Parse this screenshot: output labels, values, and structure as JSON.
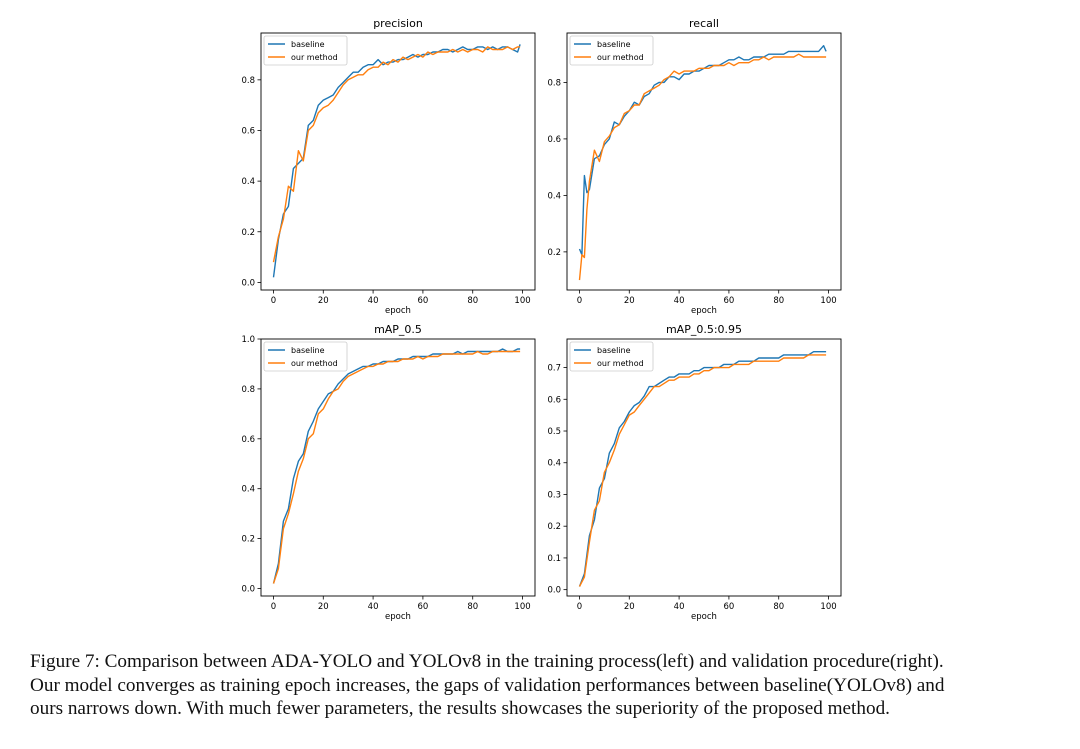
{
  "figure": {
    "caption_lines": [
      "Figure 7: Comparison between ADA-YOLO and YOLOv8 in the training process(left) and validation procedure(right).",
      "Our model converges as training epoch increases, the gaps of validation performances between baseline(YOLOv8) and",
      "ours narrows down. With much fewer parameters, the results showcases the superiority of the proposed method."
    ]
  },
  "colors": {
    "baseline": "#1f77b4",
    "ours": "#ff7f0e",
    "axis": "#000000"
  },
  "chart_data": [
    {
      "type": "line",
      "title": "precision",
      "xlabel": "epoch",
      "ylabel": "",
      "xlim": [
        -5,
        105
      ],
      "ylim": [
        -0.03,
        0.985
      ],
      "xticks": [
        0,
        20,
        40,
        60,
        80,
        100
      ],
      "yticks": [
        0.0,
        0.2,
        0.4,
        0.6,
        0.8
      ],
      "ytick_labels": [
        "0.0",
        "0.2",
        "0.4",
        "0.6",
        "0.8"
      ],
      "legend": "top-left",
      "series": [
        {
          "name": "baseline",
          "x": [
            0,
            2,
            4,
            6,
            8,
            10,
            12,
            14,
            16,
            18,
            20,
            22,
            24,
            26,
            28,
            30,
            32,
            34,
            36,
            38,
            40,
            42,
            44,
            46,
            48,
            50,
            52,
            54,
            56,
            58,
            60,
            62,
            64,
            66,
            68,
            70,
            72,
            74,
            76,
            78,
            80,
            82,
            84,
            86,
            88,
            90,
            92,
            94,
            96,
            98,
            99
          ],
          "values": [
            0.02,
            0.17,
            0.27,
            0.3,
            0.45,
            0.47,
            0.49,
            0.62,
            0.64,
            0.7,
            0.72,
            0.73,
            0.74,
            0.77,
            0.79,
            0.81,
            0.83,
            0.83,
            0.85,
            0.86,
            0.86,
            0.88,
            0.86,
            0.87,
            0.87,
            0.88,
            0.88,
            0.89,
            0.9,
            0.89,
            0.9,
            0.9,
            0.91,
            0.91,
            0.92,
            0.92,
            0.91,
            0.92,
            0.93,
            0.92,
            0.92,
            0.93,
            0.93,
            0.92,
            0.93,
            0.92,
            0.93,
            0.93,
            0.92,
            0.91,
            0.94
          ]
        },
        {
          "name": "our method",
          "x": [
            0,
            2,
            4,
            6,
            8,
            10,
            12,
            14,
            16,
            18,
            20,
            22,
            24,
            26,
            28,
            30,
            32,
            34,
            36,
            38,
            40,
            42,
            44,
            46,
            48,
            50,
            52,
            54,
            56,
            58,
            60,
            62,
            64,
            66,
            68,
            70,
            72,
            74,
            76,
            78,
            80,
            82,
            84,
            86,
            88,
            90,
            92,
            94,
            96,
            98,
            99
          ],
          "values": [
            0.08,
            0.18,
            0.25,
            0.38,
            0.36,
            0.52,
            0.48,
            0.6,
            0.62,
            0.67,
            0.69,
            0.7,
            0.72,
            0.75,
            0.78,
            0.8,
            0.81,
            0.82,
            0.82,
            0.84,
            0.85,
            0.85,
            0.87,
            0.86,
            0.88,
            0.87,
            0.89,
            0.88,
            0.89,
            0.9,
            0.89,
            0.91,
            0.9,
            0.91,
            0.91,
            0.91,
            0.92,
            0.91,
            0.92,
            0.91,
            0.92,
            0.92,
            0.91,
            0.93,
            0.92,
            0.92,
            0.92,
            0.93,
            0.92,
            0.93,
            0.93
          ]
        }
      ]
    },
    {
      "type": "line",
      "title": "recall",
      "xlabel": "epoch",
      "ylabel": "",
      "xlim": [
        -5,
        105
      ],
      "ylim": [
        0.065,
        0.975
      ],
      "xticks": [
        0,
        20,
        40,
        60,
        80,
        100
      ],
      "yticks": [
        0.2,
        0.4,
        0.6,
        0.8
      ],
      "ytick_labels": [
        "0.2",
        "0.4",
        "0.6",
        "0.8"
      ],
      "legend": "top-left",
      "series": [
        {
          "name": "baseline",
          "x": [
            0,
            1,
            2,
            3,
            4,
            6,
            8,
            10,
            12,
            14,
            16,
            18,
            20,
            22,
            24,
            26,
            28,
            30,
            32,
            34,
            36,
            38,
            40,
            42,
            44,
            46,
            48,
            50,
            52,
            54,
            56,
            58,
            60,
            62,
            64,
            66,
            68,
            70,
            72,
            74,
            76,
            78,
            80,
            82,
            84,
            86,
            88,
            90,
            92,
            94,
            96,
            98,
            99
          ],
          "values": [
            0.21,
            0.19,
            0.47,
            0.41,
            0.42,
            0.53,
            0.54,
            0.58,
            0.6,
            0.66,
            0.65,
            0.68,
            0.7,
            0.73,
            0.72,
            0.75,
            0.76,
            0.79,
            0.8,
            0.8,
            0.82,
            0.82,
            0.81,
            0.83,
            0.83,
            0.84,
            0.84,
            0.85,
            0.86,
            0.86,
            0.86,
            0.87,
            0.88,
            0.88,
            0.89,
            0.88,
            0.88,
            0.89,
            0.89,
            0.89,
            0.9,
            0.9,
            0.9,
            0.9,
            0.91,
            0.91,
            0.91,
            0.91,
            0.91,
            0.91,
            0.91,
            0.93,
            0.91
          ]
        },
        {
          "name": "our method",
          "x": [
            0,
            1,
            2,
            3,
            4,
            6,
            8,
            10,
            12,
            14,
            16,
            18,
            20,
            22,
            24,
            26,
            28,
            30,
            32,
            34,
            36,
            38,
            40,
            42,
            44,
            46,
            48,
            50,
            52,
            54,
            56,
            58,
            60,
            62,
            64,
            66,
            68,
            70,
            72,
            74,
            76,
            78,
            80,
            82,
            84,
            86,
            88,
            90,
            92,
            94,
            96,
            98,
            99
          ],
          "values": [
            0.1,
            0.19,
            0.18,
            0.35,
            0.45,
            0.56,
            0.52,
            0.59,
            0.61,
            0.64,
            0.65,
            0.69,
            0.7,
            0.72,
            0.72,
            0.76,
            0.77,
            0.78,
            0.79,
            0.81,
            0.82,
            0.84,
            0.83,
            0.84,
            0.84,
            0.84,
            0.85,
            0.85,
            0.85,
            0.86,
            0.86,
            0.86,
            0.87,
            0.86,
            0.87,
            0.87,
            0.87,
            0.88,
            0.88,
            0.89,
            0.88,
            0.89,
            0.89,
            0.89,
            0.89,
            0.89,
            0.9,
            0.89,
            0.89,
            0.89,
            0.89,
            0.89,
            0.89
          ]
        }
      ]
    },
    {
      "type": "line",
      "title": "mAP_0.5",
      "xlabel": "epoch",
      "ylabel": "",
      "xlim": [
        -5,
        105
      ],
      "ylim": [
        -0.03,
        1.0
      ],
      "xticks": [
        0,
        20,
        40,
        60,
        80,
        100
      ],
      "yticks": [
        0.0,
        0.2,
        0.4,
        0.6,
        0.8,
        1.0
      ],
      "ytick_labels": [
        "0.0",
        "0.2",
        "0.4",
        "0.6",
        "0.8",
        "1.0"
      ],
      "legend": "top-left",
      "series": [
        {
          "name": "baseline",
          "x": [
            0,
            2,
            4,
            6,
            8,
            10,
            12,
            14,
            16,
            18,
            20,
            22,
            24,
            26,
            28,
            30,
            32,
            34,
            36,
            38,
            40,
            42,
            44,
            46,
            48,
            50,
            52,
            54,
            56,
            58,
            60,
            62,
            64,
            66,
            68,
            70,
            72,
            74,
            76,
            78,
            80,
            82,
            84,
            86,
            88,
            90,
            92,
            94,
            96,
            98,
            99
          ],
          "values": [
            0.02,
            0.1,
            0.27,
            0.32,
            0.44,
            0.51,
            0.54,
            0.63,
            0.67,
            0.72,
            0.75,
            0.78,
            0.79,
            0.82,
            0.84,
            0.86,
            0.87,
            0.88,
            0.89,
            0.89,
            0.9,
            0.9,
            0.91,
            0.91,
            0.91,
            0.92,
            0.92,
            0.92,
            0.93,
            0.93,
            0.93,
            0.93,
            0.94,
            0.94,
            0.94,
            0.94,
            0.94,
            0.95,
            0.94,
            0.95,
            0.95,
            0.95,
            0.95,
            0.95,
            0.95,
            0.95,
            0.96,
            0.95,
            0.95,
            0.96,
            0.96
          ]
        },
        {
          "name": "our method",
          "x": [
            0,
            2,
            4,
            6,
            8,
            10,
            12,
            14,
            16,
            18,
            20,
            22,
            24,
            26,
            28,
            30,
            32,
            34,
            36,
            38,
            40,
            42,
            44,
            46,
            48,
            50,
            52,
            54,
            56,
            58,
            60,
            62,
            64,
            66,
            68,
            70,
            72,
            74,
            76,
            78,
            80,
            82,
            84,
            86,
            88,
            90,
            92,
            94,
            96,
            98,
            99
          ],
          "values": [
            0.02,
            0.08,
            0.24,
            0.3,
            0.38,
            0.47,
            0.52,
            0.6,
            0.62,
            0.7,
            0.72,
            0.76,
            0.79,
            0.8,
            0.83,
            0.85,
            0.86,
            0.87,
            0.88,
            0.89,
            0.89,
            0.9,
            0.9,
            0.91,
            0.91,
            0.91,
            0.92,
            0.92,
            0.92,
            0.93,
            0.92,
            0.93,
            0.93,
            0.93,
            0.94,
            0.94,
            0.94,
            0.94,
            0.94,
            0.94,
            0.94,
            0.95,
            0.94,
            0.94,
            0.95,
            0.95,
            0.95,
            0.95,
            0.95,
            0.95,
            0.95
          ]
        }
      ]
    },
    {
      "type": "line",
      "title": "mAP_0.5:0.95",
      "xlabel": "epoch",
      "ylabel": "",
      "xlim": [
        -5,
        105
      ],
      "ylim": [
        -0.02,
        0.79
      ],
      "xticks": [
        0,
        20,
        40,
        60,
        80,
        100
      ],
      "yticks": [
        0.0,
        0.1,
        0.2,
        0.3,
        0.4,
        0.5,
        0.6,
        0.7
      ],
      "ytick_labels": [
        "0.0",
        "0.1",
        "0.2",
        "0.3",
        "0.4",
        "0.5",
        "0.6",
        "0.7"
      ],
      "legend": "top-left",
      "series": [
        {
          "name": "baseline",
          "x": [
            0,
            2,
            4,
            6,
            8,
            10,
            12,
            14,
            16,
            18,
            20,
            22,
            24,
            26,
            28,
            30,
            32,
            34,
            36,
            38,
            40,
            42,
            44,
            46,
            48,
            50,
            52,
            54,
            56,
            58,
            60,
            62,
            64,
            66,
            68,
            70,
            72,
            74,
            76,
            78,
            80,
            82,
            84,
            86,
            88,
            90,
            92,
            94,
            96,
            98,
            99
          ],
          "values": [
            0.01,
            0.05,
            0.17,
            0.22,
            0.32,
            0.35,
            0.43,
            0.46,
            0.51,
            0.53,
            0.56,
            0.58,
            0.59,
            0.61,
            0.64,
            0.64,
            0.65,
            0.66,
            0.67,
            0.67,
            0.68,
            0.68,
            0.68,
            0.69,
            0.69,
            0.7,
            0.7,
            0.7,
            0.7,
            0.71,
            0.71,
            0.71,
            0.72,
            0.72,
            0.72,
            0.72,
            0.73,
            0.73,
            0.73,
            0.73,
            0.73,
            0.74,
            0.74,
            0.74,
            0.74,
            0.74,
            0.74,
            0.75,
            0.75,
            0.75,
            0.75
          ]
        },
        {
          "name": "our method",
          "x": [
            0,
            2,
            4,
            6,
            8,
            10,
            12,
            14,
            16,
            18,
            20,
            22,
            24,
            26,
            28,
            30,
            32,
            34,
            36,
            38,
            40,
            42,
            44,
            46,
            48,
            50,
            52,
            54,
            56,
            58,
            60,
            62,
            64,
            66,
            68,
            70,
            72,
            74,
            76,
            78,
            80,
            82,
            84,
            86,
            88,
            90,
            92,
            94,
            96,
            98,
            99
          ],
          "values": [
            0.01,
            0.04,
            0.15,
            0.25,
            0.28,
            0.37,
            0.4,
            0.44,
            0.49,
            0.52,
            0.55,
            0.56,
            0.58,
            0.6,
            0.62,
            0.64,
            0.64,
            0.65,
            0.66,
            0.66,
            0.67,
            0.67,
            0.67,
            0.68,
            0.68,
            0.69,
            0.69,
            0.7,
            0.7,
            0.7,
            0.7,
            0.71,
            0.71,
            0.71,
            0.71,
            0.72,
            0.72,
            0.72,
            0.72,
            0.72,
            0.72,
            0.73,
            0.73,
            0.73,
            0.73,
            0.73,
            0.74,
            0.74,
            0.74,
            0.74,
            0.74
          ]
        }
      ]
    }
  ]
}
